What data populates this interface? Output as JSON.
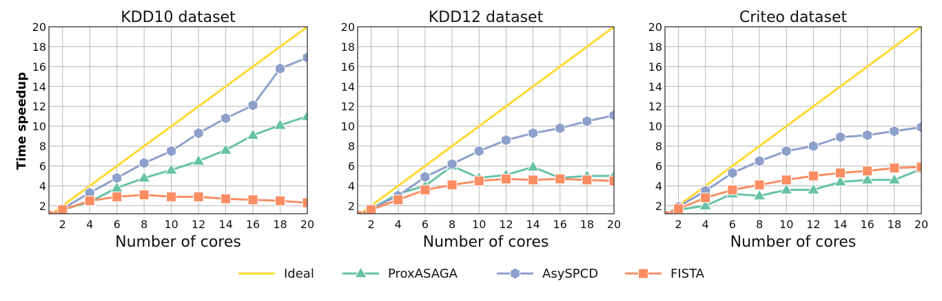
{
  "chart_data": {
    "type": "line",
    "ylabel": "Time speedup",
    "x_ticks": [
      2,
      4,
      6,
      8,
      10,
      12,
      14,
      16,
      18,
      20
    ],
    "y_ticks": [
      2,
      4,
      6,
      8,
      10,
      12,
      14,
      16,
      18,
      20
    ],
    "xlim": [
      1,
      20
    ],
    "ylim": [
      1.2,
      20
    ],
    "grid": true,
    "legend_placement": "bottom",
    "legend": [
      {
        "name": "Ideal",
        "color": "#ffd92f",
        "marker": "none"
      },
      {
        "name": "ProxASAGA",
        "color": "#66c2a5",
        "marker": "triangle"
      },
      {
        "name": "AsySPCD",
        "color": "#8da0cb",
        "marker": "hexagon"
      },
      {
        "name": "FISTA",
        "color": "#fc8d62",
        "marker": "square"
      }
    ],
    "panels": [
      {
        "title": "KDD10 dataset",
        "xlabel": "Number of cores",
        "x": [
          1,
          2,
          4,
          6,
          8,
          10,
          12,
          14,
          16,
          18,
          20
        ],
        "series": [
          {
            "name": "Ideal",
            "values": [
              1,
              2,
              4,
              6,
              8,
              10,
              12,
              14,
              16,
              18,
              20
            ]
          },
          {
            "name": "ProxASAGA",
            "values": [
              1,
              1.6,
              2.4,
              3.8,
              4.8,
              5.6,
              6.5,
              7.6,
              9.1,
              10.1,
              11.0
            ]
          },
          {
            "name": "AsySPCD",
            "values": [
              1,
              1.7,
              3.3,
              4.8,
              6.3,
              7.5,
              9.3,
              10.8,
              12.1,
              15.8,
              16.9
            ]
          },
          {
            "name": "FISTA",
            "values": [
              1,
              1.6,
              2.5,
              2.9,
              3.1,
              2.9,
              2.9,
              2.7,
              2.6,
              2.5,
              2.3
            ]
          }
        ]
      },
      {
        "title": "KDD12 dataset",
        "xlabel": "Number of cores",
        "x": [
          1,
          2,
          4,
          6,
          8,
          10,
          12,
          14,
          16,
          18,
          20
        ],
        "series": [
          {
            "name": "Ideal",
            "values": [
              1,
              2,
              4,
              6,
              8,
              10,
              12,
              14,
              16,
              18,
              20
            ]
          },
          {
            "name": "ProxASAGA",
            "values": [
              1,
              1.7,
              3.2,
              4.0,
              6.0,
              4.8,
              5.1,
              5.9,
              4.8,
              5.0,
              5.0
            ]
          },
          {
            "name": "AsySPCD",
            "values": [
              1,
              1.7,
              3.0,
              4.9,
              6.2,
              7.5,
              8.6,
              9.3,
              9.8,
              10.5,
              11.1
            ]
          },
          {
            "name": "FISTA",
            "values": [
              1,
              1.6,
              2.6,
              3.6,
              4.1,
              4.5,
              4.7,
              4.6,
              4.7,
              4.6,
              4.5
            ]
          }
        ]
      },
      {
        "title": "Criteo dataset",
        "xlabel": "Number of cores",
        "x": [
          1,
          2,
          4,
          6,
          8,
          10,
          12,
          14,
          16,
          18,
          20
        ],
        "series": [
          {
            "name": "Ideal",
            "values": [
              1,
              2,
              4,
              6,
              8,
              10,
              12,
              14,
              16,
              18,
              20
            ]
          },
          {
            "name": "ProxASAGA",
            "values": [
              1,
              1.6,
              2.0,
              3.2,
              3.0,
              3.6,
              3.6,
              4.4,
              4.6,
              4.6,
              5.7
            ]
          },
          {
            "name": "AsySPCD",
            "values": [
              1,
              1.9,
              3.5,
              5.3,
              6.5,
              7.5,
              8.0,
              8.9,
              9.1,
              9.5,
              9.9
            ]
          },
          {
            "name": "FISTA",
            "values": [
              1,
              1.7,
              2.8,
              3.6,
              4.1,
              4.6,
              5.0,
              5.3,
              5.5,
              5.8,
              5.9
            ]
          }
        ]
      }
    ]
  }
}
